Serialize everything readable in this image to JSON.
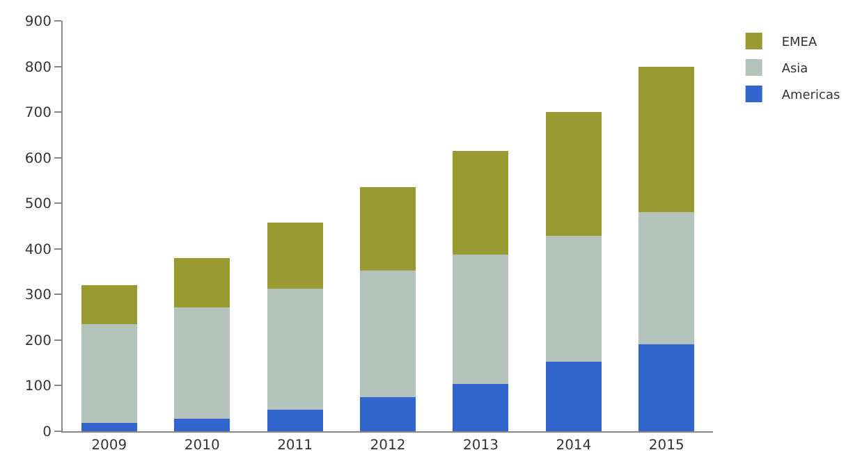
{
  "chart_data": {
    "type": "bar",
    "stacked": true,
    "categories": [
      "2009",
      "2010",
      "2011",
      "2012",
      "2013",
      "2014",
      "2015"
    ],
    "series": [
      {
        "name": "Americas",
        "color": "#3366cc",
        "values": [
          18,
          28,
          47,
          75,
          103,
          153,
          190
        ]
      },
      {
        "name": "Asia",
        "color": "#b4c4bc",
        "values": [
          217,
          244,
          265,
          277,
          285,
          275,
          290
        ]
      },
      {
        "name": "EMEA",
        "color": "#9a9a32",
        "values": [
          85,
          108,
          145,
          183,
          227,
          272,
          320
        ]
      }
    ],
    "ylim": [
      0,
      900
    ],
    "yticks": [
      0,
      100,
      200,
      300,
      400,
      500,
      600,
      700,
      800,
      900
    ],
    "legend": "top right"
  }
}
